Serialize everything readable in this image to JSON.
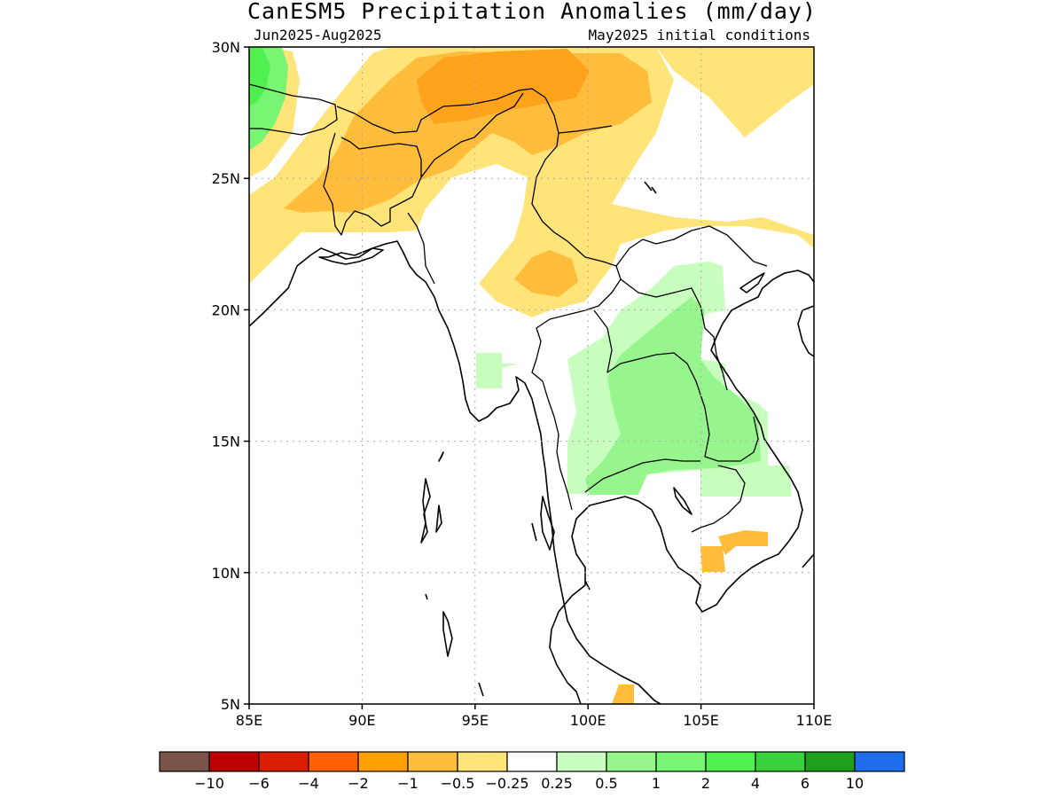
{
  "title": "CanESM5 Precipitation Anomalies (mm/day)",
  "subtitle_left": "Jun2025-Aug2025",
  "subtitle_right": "May2025 initial conditions",
  "axes": {
    "lon_ticks": [
      "85E",
      "90E",
      "95E",
      "100E",
      "105E",
      "110E"
    ],
    "lat_ticks": [
      "30N",
      "25N",
      "20N",
      "15N",
      "10N",
      "5N"
    ],
    "lon_range": [
      85,
      110
    ],
    "lat_range": [
      5,
      30
    ],
    "grid": true
  },
  "colorbar": {
    "colors": [
      "#7a5448",
      "#be0000",
      "#dc1e00",
      "#ff6000",
      "#ff9f00",
      "#ffbd3b",
      "#ffe47a",
      "#ffffff",
      "#c8ffbe",
      "#96f58c",
      "#78f573",
      "#50f050",
      "#37d23c",
      "#1ea01e",
      "#1e6eeb"
    ],
    "labels": [
      "-10",
      "-6",
      "-4",
      "-2",
      "-1",
      "-0.5",
      "-0.25",
      "0.25",
      "0.5",
      "1",
      "2",
      "4",
      "6",
      "10"
    ]
  },
  "anomaly_regions": [
    {
      "category": "-0.25 to -0.5",
      "color": "#ffe47a",
      "area": "northern Bangladesh, Bhutan, Tibet, Yunnan, southern China"
    },
    {
      "category": "-0.5 to -1",
      "color": "#ffbd3b",
      "area": "Bangladesh, northeast India, eastern Himalaya, northern Myanmar"
    },
    {
      "category": "-1 to -2",
      "color": "#ff9f00",
      "area": "southeastern Tibet near 95-100E, 28-30N"
    },
    {
      "category": "0.25 to 0.5",
      "color": "#c8ffbe",
      "area": "northeast Thailand, Laos, Cambodia, central Vietnam"
    },
    {
      "category": "0.5 to 1",
      "color": "#96f58c",
      "area": "eastern Thailand and southern Laos"
    },
    {
      "category": "1 to 2",
      "color": "#78f573",
      "area": "Nepal near 85E, 26-30N"
    }
  ]
}
